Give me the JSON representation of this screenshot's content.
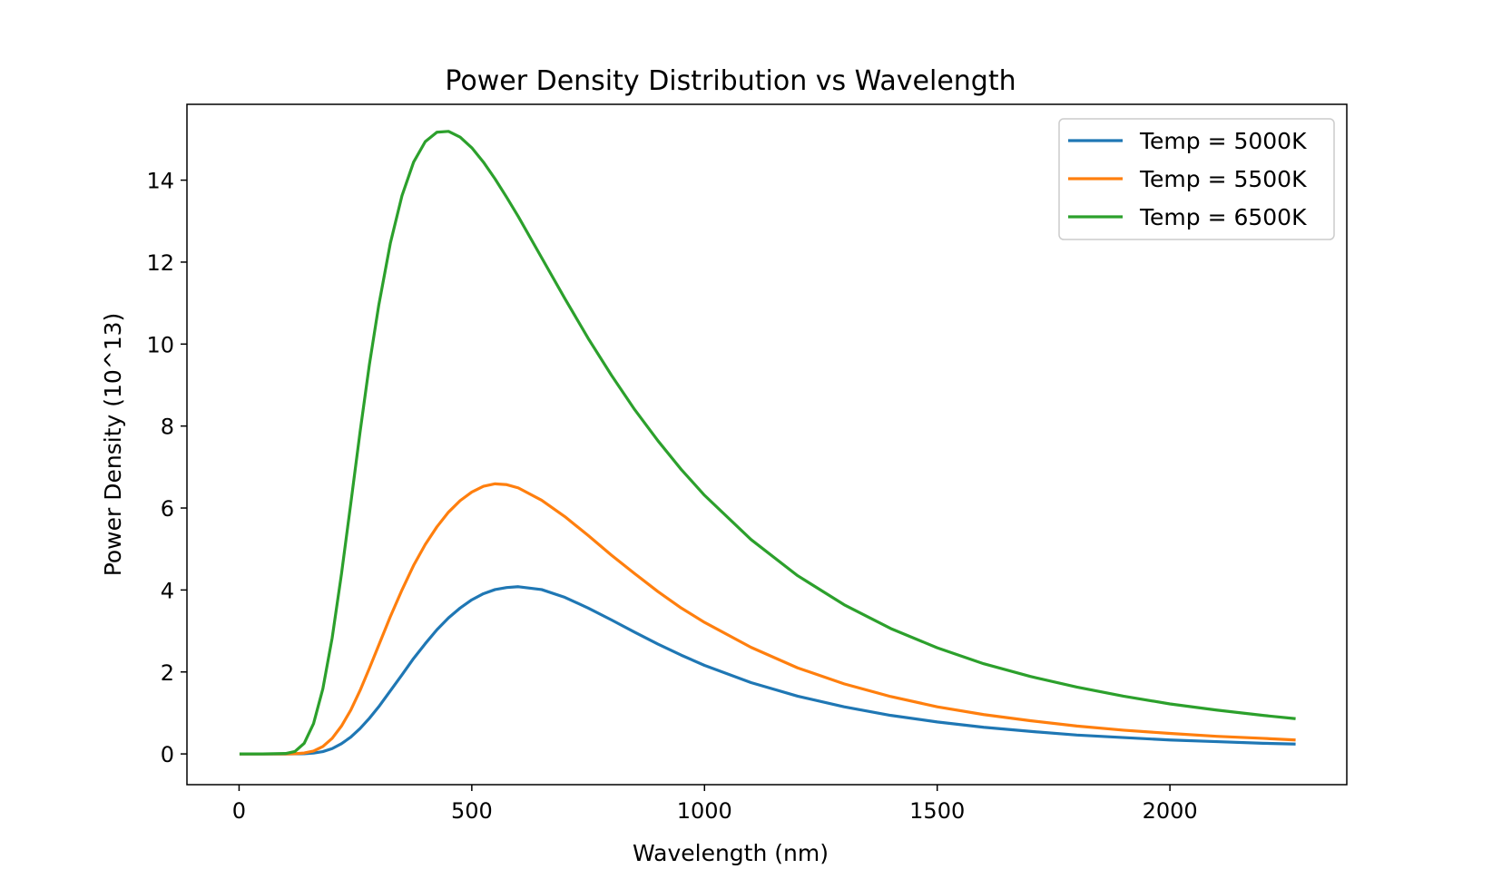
{
  "chart_data": {
    "type": "line",
    "title": "Power Density Distribution vs Wavelength",
    "xlabel": "Wavelength (nm)",
    "ylabel": "Power Density (10^13)",
    "xlim": [
      -112,
      2380
    ],
    "ylim": [
      -0.75,
      15.85
    ],
    "xticks": [
      0,
      500,
      1000,
      1500,
      2000
    ],
    "xtick_labels": [
      "0",
      "500",
      "1000",
      "1500",
      "2000"
    ],
    "yticks": [
      0,
      2,
      4,
      6,
      8,
      10,
      12,
      14
    ],
    "ytick_labels": [
      "0",
      "2",
      "4",
      "6",
      "8",
      "10",
      "12",
      "14"
    ],
    "grid": false,
    "legend_position": "top-right",
    "x": [
      1,
      50,
      100,
      120,
      140,
      160,
      180,
      200,
      220,
      240,
      260,
      280,
      300,
      325,
      350,
      375,
      400,
      425,
      450,
      475,
      500,
      525,
      550,
      575,
      600,
      650,
      700,
      750,
      800,
      850,
      900,
      950,
      1000,
      1100,
      1200,
      1300,
      1400,
      1500,
      1600,
      1700,
      1800,
      1900,
      2000,
      2100,
      2200,
      2270
    ],
    "series": [
      {
        "name": "Temp = 5000K",
        "color": "#1f77b4",
        "values": [
          0,
          0,
          0,
          0.001,
          0.005,
          0.02,
          0.057,
          0.13,
          0.25,
          0.41,
          0.62,
          0.87,
          1.15,
          1.54,
          1.93,
          2.33,
          2.69,
          3.03,
          3.32,
          3.56,
          3.76,
          3.91,
          4.01,
          4.06,
          4.08,
          4.01,
          3.82,
          3.56,
          3.27,
          2.97,
          2.68,
          2.41,
          2.16,
          1.74,
          1.41,
          1.15,
          0.94,
          0.78,
          0.65,
          0.55,
          0.46,
          0.4,
          0.34,
          0.3,
          0.26,
          0.24
        ]
      },
      {
        "name": "Temp = 5500K",
        "color": "#ff7f0e",
        "values": [
          0,
          0,
          0,
          0.005,
          0.022,
          0.07,
          0.18,
          0.38,
          0.68,
          1.07,
          1.55,
          2.09,
          2.65,
          3.35,
          4.0,
          4.6,
          5.11,
          5.54,
          5.9,
          6.18,
          6.39,
          6.53,
          6.59,
          6.57,
          6.49,
          6.19,
          5.79,
          5.33,
          4.85,
          4.4,
          3.96,
          3.56,
          3.21,
          2.6,
          2.1,
          1.71,
          1.4,
          1.15,
          0.96,
          0.81,
          0.68,
          0.58,
          0.5,
          0.43,
          0.38,
          0.34
        ]
      },
      {
        "name": "Temp = 6500K",
        "color": "#2ca02c",
        "values": [
          0,
          0,
          0.01,
          0.06,
          0.26,
          0.74,
          1.59,
          2.83,
          4.39,
          6.11,
          7.86,
          9.5,
          10.94,
          12.46,
          13.62,
          14.44,
          14.94,
          15.17,
          15.19,
          15.05,
          14.79,
          14.44,
          14.03,
          13.58,
          13.11,
          12.11,
          11.11,
          10.14,
          9.24,
          8.4,
          7.64,
          6.94,
          6.31,
          5.23,
          4.35,
          3.64,
          3.06,
          2.59,
          2.2,
          1.89,
          1.63,
          1.41,
          1.22,
          1.07,
          0.94,
          0.86
        ]
      }
    ]
  }
}
